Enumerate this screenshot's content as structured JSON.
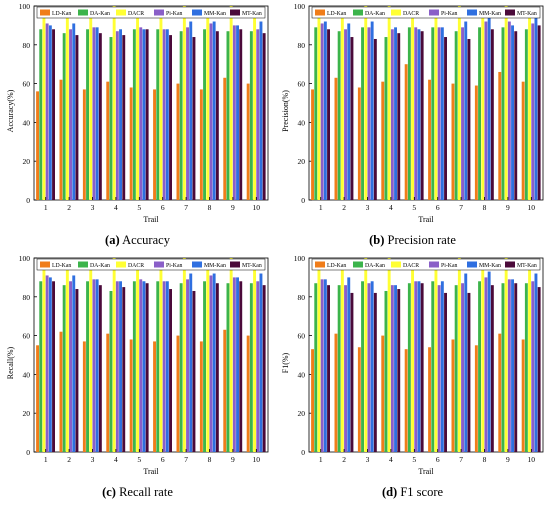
{
  "series_colors": [
    "#f07d1a",
    "#3cb44b",
    "#ffff33",
    "#8a5fc8",
    "#2f6fe0",
    "#4b0a3a"
  ],
  "chart_data": [
    {
      "type": "bar",
      "caption_letter": "(a)",
      "caption_text": "Accuracy",
      "xlabel": "Trail",
      "ylabel": "Accuracy(%)",
      "ylim": [
        0,
        100
      ],
      "yticks": [
        0,
        20,
        40,
        60,
        80,
        100
      ],
      "grid": false,
      "legend_position": "top",
      "categories": [
        "1",
        "2",
        "3",
        "4",
        "5",
        "6",
        "7",
        "8",
        "9",
        "10"
      ],
      "series": [
        {
          "name": "LD-Kan",
          "values": [
            56,
            62,
            57,
            61,
            58,
            57,
            60,
            57,
            63,
            60
          ]
        },
        {
          "name": "DA-Kan",
          "values": [
            88,
            86,
            88,
            84,
            88,
            88,
            87,
            88,
            87,
            87
          ]
        },
        {
          "name": "DACR",
          "values": [
            99,
            99,
            99,
            100,
            96,
            98,
            100,
            97,
            100,
            99
          ]
        },
        {
          "name": "Pi-Kan",
          "values": [
            91,
            88,
            89,
            87,
            89,
            88,
            89,
            91,
            90,
            88
          ]
        },
        {
          "name": "MM-Kan",
          "values": [
            90,
            91,
            89,
            88,
            88,
            88,
            92,
            92,
            90,
            92
          ]
        },
        {
          "name": "MT-Kan",
          "values": [
            88,
            85,
            86,
            85,
            88,
            85,
            84,
            87,
            88,
            86
          ]
        }
      ]
    },
    {
      "type": "bar",
      "caption_letter": "(b)",
      "caption_text": "Precision rate",
      "xlabel": "Trail",
      "ylabel": "Precision(%)",
      "ylim": [
        0,
        100
      ],
      "yticks": [
        0,
        20,
        40,
        60,
        80,
        100
      ],
      "grid": false,
      "legend_position": "top",
      "categories": [
        "1",
        "2",
        "3",
        "4",
        "5",
        "6",
        "7",
        "8",
        "9",
        "10"
      ],
      "series": [
        {
          "name": "LD-Kan",
          "values": [
            57,
            63,
            58,
            61,
            70,
            62,
            60,
            59,
            66,
            61
          ]
        },
        {
          "name": "DA-Kan",
          "values": [
            89,
            87,
            89,
            84,
            89,
            89,
            87,
            89,
            89,
            88
          ]
        },
        {
          "name": "DACR",
          "values": [
            99,
            99,
            100,
            100,
            97,
            98,
            100,
            98,
            100,
            99
          ]
        },
        {
          "name": "Pi-Kan",
          "values": [
            91,
            88,
            89,
            88,
            89,
            89,
            89,
            92,
            92,
            91
          ]
        },
        {
          "name": "MM-Kan",
          "values": [
            92,
            91,
            92,
            89,
            88,
            89,
            92,
            94,
            90,
            94
          ]
        },
        {
          "name": "MT-Kan",
          "values": [
            88,
            84,
            83,
            86,
            87,
            84,
            83,
            88,
            87,
            90
          ]
        }
      ]
    },
    {
      "type": "bar",
      "caption_letter": "(c)",
      "caption_text": "Recall rate",
      "xlabel": "Trail",
      "ylabel": "Recall(%)",
      "ylim": [
        0,
        100
      ],
      "yticks": [
        0,
        20,
        40,
        60,
        80,
        100
      ],
      "grid": false,
      "legend_position": "top",
      "categories": [
        "1",
        "2",
        "3",
        "4",
        "5",
        "6",
        "7",
        "8",
        "9",
        "10"
      ],
      "series": [
        {
          "name": "LD-Kan",
          "values": [
            55,
            62,
            57,
            61,
            58,
            57,
            60,
            57,
            63,
            60
          ]
        },
        {
          "name": "DA-Kan",
          "values": [
            88,
            86,
            88,
            83,
            88,
            88,
            87,
            88,
            87,
            87
          ]
        },
        {
          "name": "DACR",
          "values": [
            98,
            99,
            99,
            100,
            96,
            98,
            100,
            97,
            100,
            99
          ]
        },
        {
          "name": "Pi-Kan",
          "values": [
            91,
            88,
            89,
            88,
            89,
            88,
            89,
            91,
            90,
            88
          ]
        },
        {
          "name": "MM-Kan",
          "values": [
            90,
            91,
            89,
            88,
            88,
            88,
            92,
            92,
            90,
            92
          ]
        },
        {
          "name": "MT-Kan",
          "values": [
            88,
            84,
            86,
            85,
            87,
            84,
            83,
            87,
            88,
            86
          ]
        }
      ]
    },
    {
      "type": "bar",
      "caption_letter": "(d)",
      "caption_text": "F1 score",
      "xlabel": "Trail",
      "ylabel": "F1(%)",
      "ylim": [
        0,
        100
      ],
      "yticks": [
        0,
        20,
        40,
        60,
        80,
        100
      ],
      "grid": false,
      "legend_position": "top",
      "categories": [
        "1",
        "2",
        "3",
        "4",
        "5",
        "6",
        "7",
        "8",
        "9",
        "10"
      ],
      "series": [
        {
          "name": "LD-Kan",
          "values": [
            53,
            61,
            54,
            60,
            53,
            54,
            58,
            55,
            61,
            58
          ]
        },
        {
          "name": "DA-Kan",
          "values": [
            87,
            86,
            88,
            83,
            87,
            88,
            86,
            88,
            87,
            87
          ]
        },
        {
          "name": "DACR",
          "values": [
            98,
            99,
            100,
            100,
            96,
            98,
            100,
            97,
            100,
            99
          ]
        },
        {
          "name": "Pi-Kan",
          "values": [
            89,
            86,
            87,
            86,
            88,
            86,
            87,
            90,
            89,
            88
          ]
        },
        {
          "name": "MM-Kan",
          "values": [
            89,
            90,
            88,
            86,
            88,
            88,
            92,
            93,
            89,
            92
          ]
        },
        {
          "name": "MT-Kan",
          "values": [
            86,
            82,
            82,
            84,
            87,
            82,
            82,
            86,
            87,
            85
          ]
        }
      ]
    }
  ]
}
